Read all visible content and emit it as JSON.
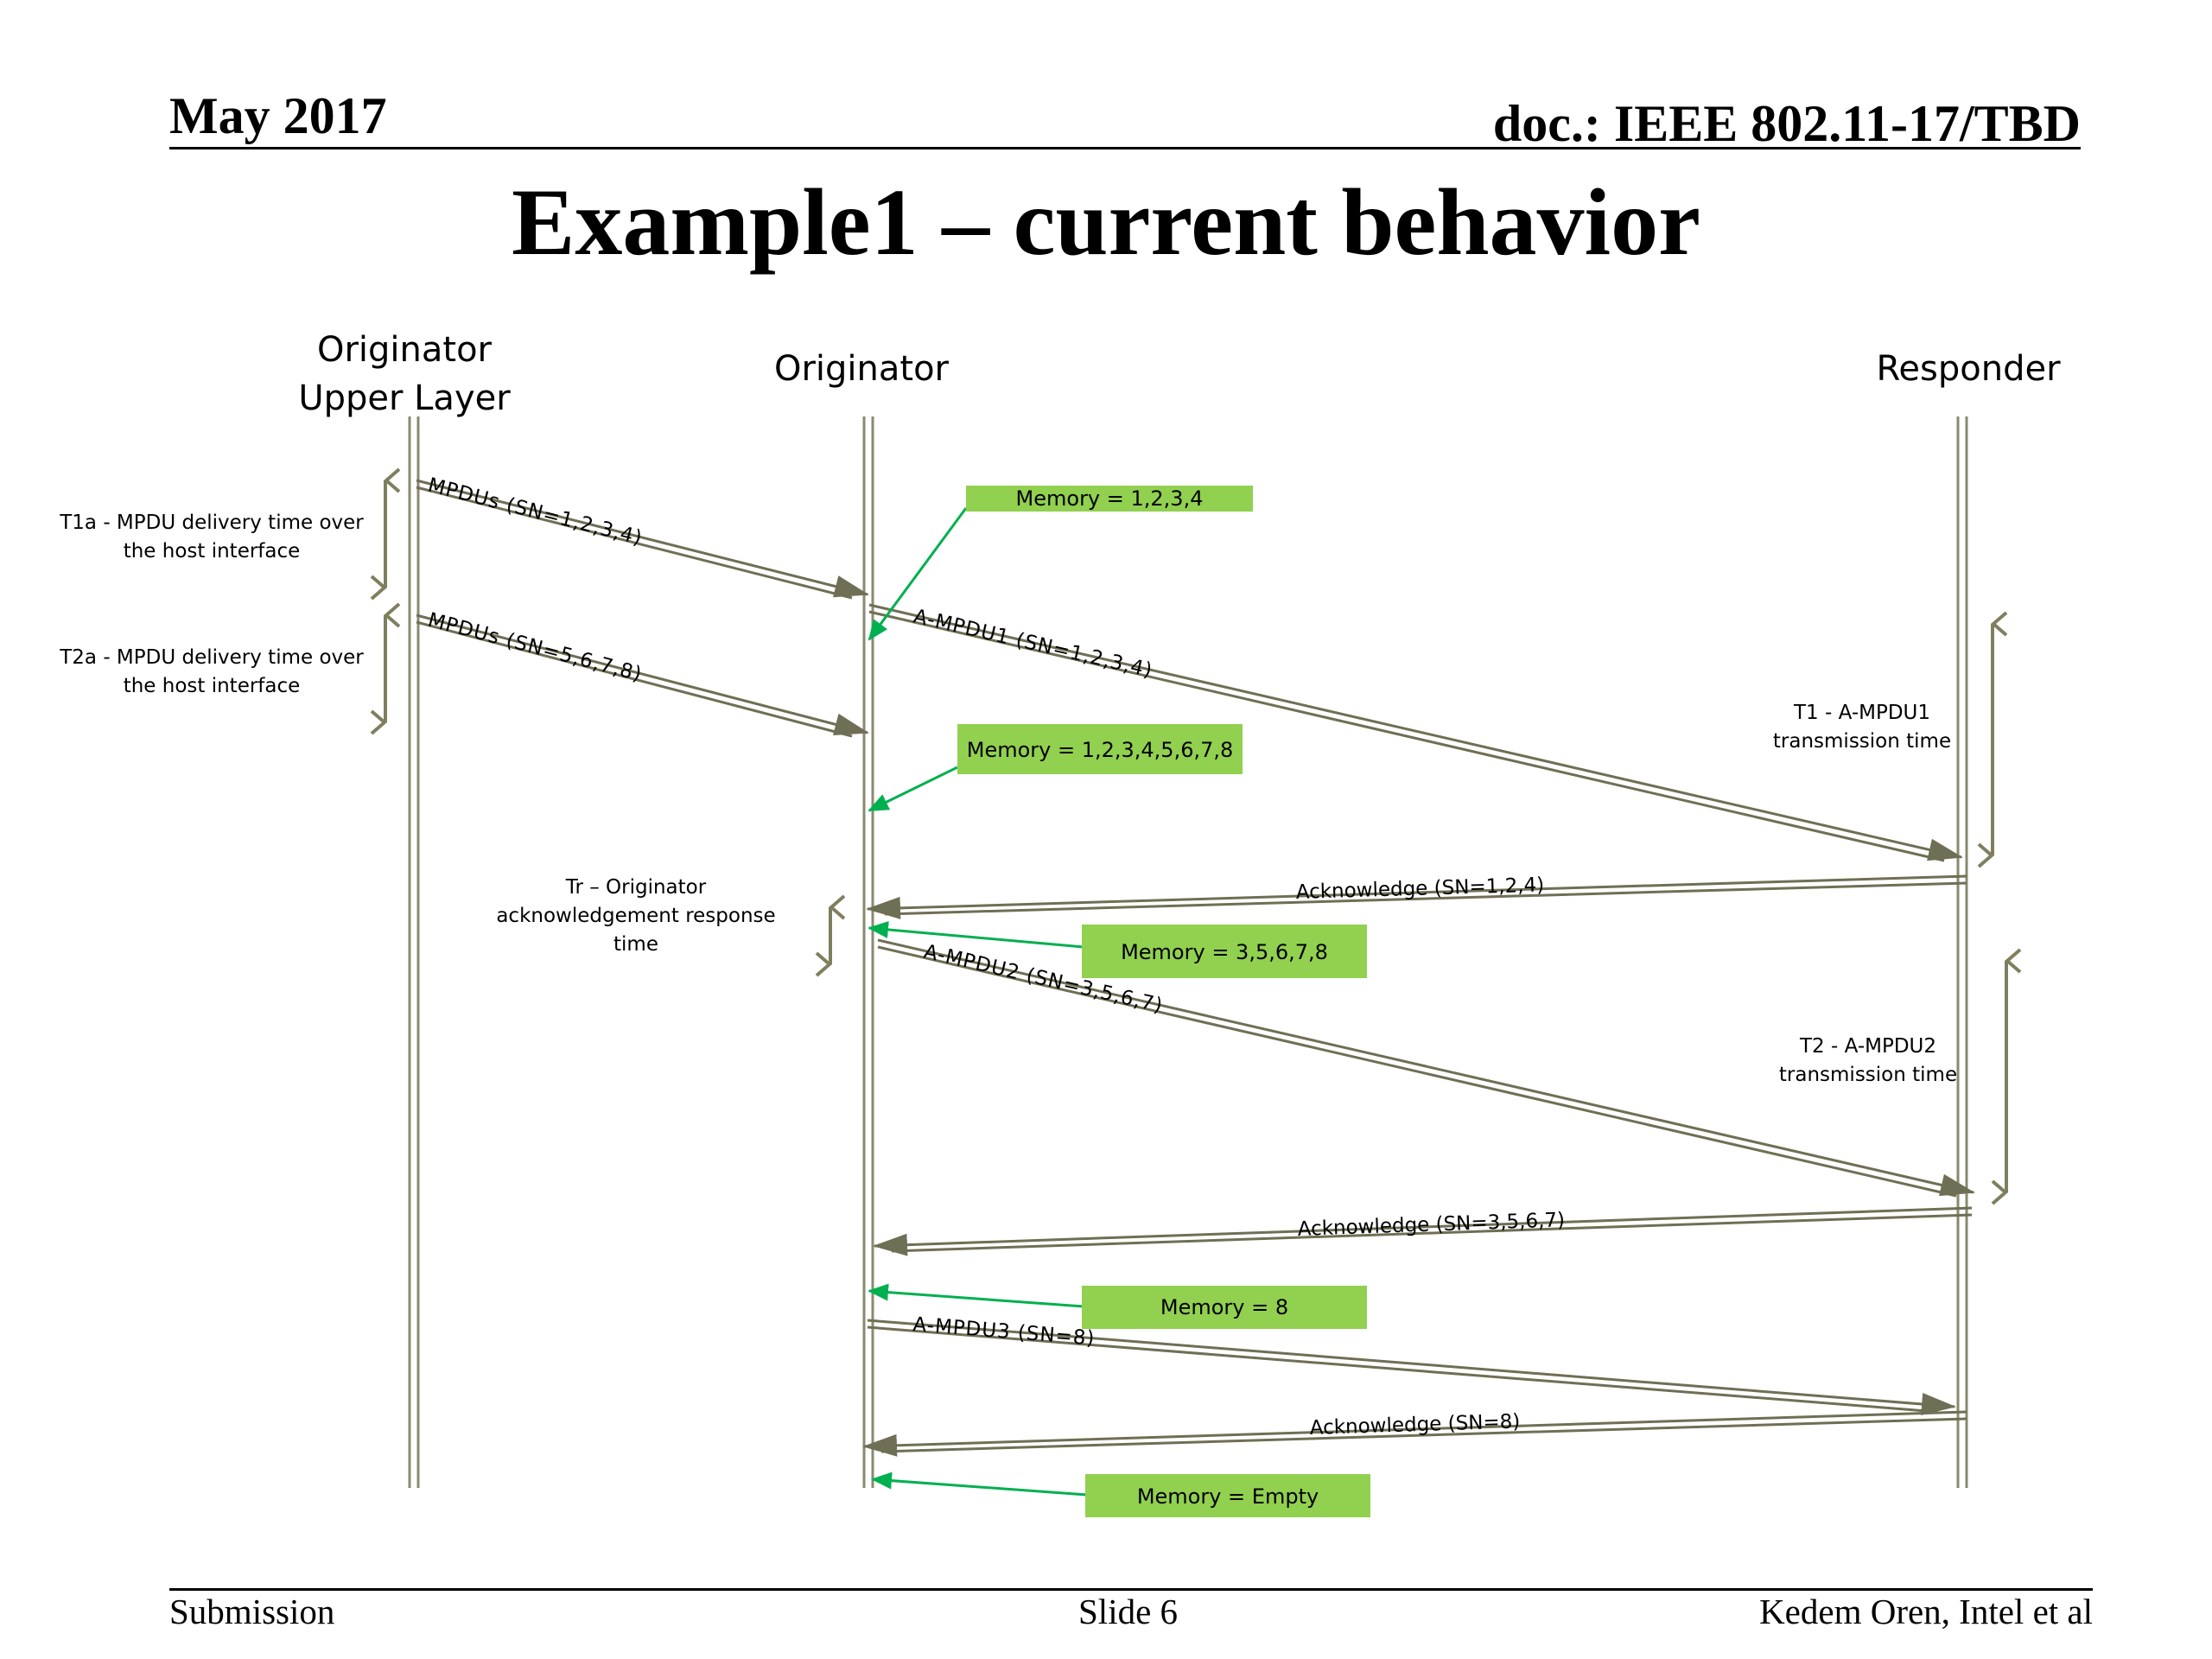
{
  "header": {
    "date": "May 2017",
    "doc": "doc.: IEEE 802.11-17/TBD"
  },
  "title": "Example1 – current behavior",
  "lanes": {
    "upper_layer_line1": "Originator",
    "upper_layer_line2": "Upper Layer",
    "originator": "Originator",
    "responder": "Responder"
  },
  "timing": {
    "t1a_line1": "T1a - MPDU delivery time over",
    "t1a_line2": "the host interface",
    "t2a_line1": "T2a - MPDU delivery time over",
    "t2a_line2": "the host interface",
    "tr_line1": "Tr – Originator",
    "tr_line2": "acknowledgement response",
    "tr_line3": "time",
    "t1_line1": "T1 - A-MPDU1",
    "t1_line2": "transmission time",
    "t2_line1": "T2 - A-MPDU2",
    "t2_line2": "transmission time"
  },
  "messages": {
    "mpdus1": "MPDUs (SN=1,2,3,4)",
    "mpdus2": "MPDUs (SN=5,6,7,8)",
    "ampdu1": "A-MPDU1 (SN=1,2,3,4)",
    "ack1": "Acknowledge (SN=1,2,4)",
    "ampdu2": "A-MPDU2 (SN=3,5,6,7)",
    "ack2": "Acknowledge (SN=3,5,6,7)",
    "ampdu3": "A-MPDU3 (SN=8)",
    "ack3": "Acknowledge (SN=8)"
  },
  "memory": {
    "m1": "Memory = 1,2,3,4",
    "m2": "Memory = 1,2,3,4,5,6,7,8",
    "m3": "Memory = 3,5,6,7,8",
    "m4": "Memory = 8",
    "m5": "Memory = Empty"
  },
  "colors": {
    "memory_box": "#92d050",
    "memory_arrow": "#00b050",
    "timing_arrow": "#7f7f5f",
    "message_line": "#6f6f55"
  },
  "footer": {
    "left": "Submission",
    "center": "Slide 6",
    "right": "Kedem Oren, Intel et al"
  }
}
